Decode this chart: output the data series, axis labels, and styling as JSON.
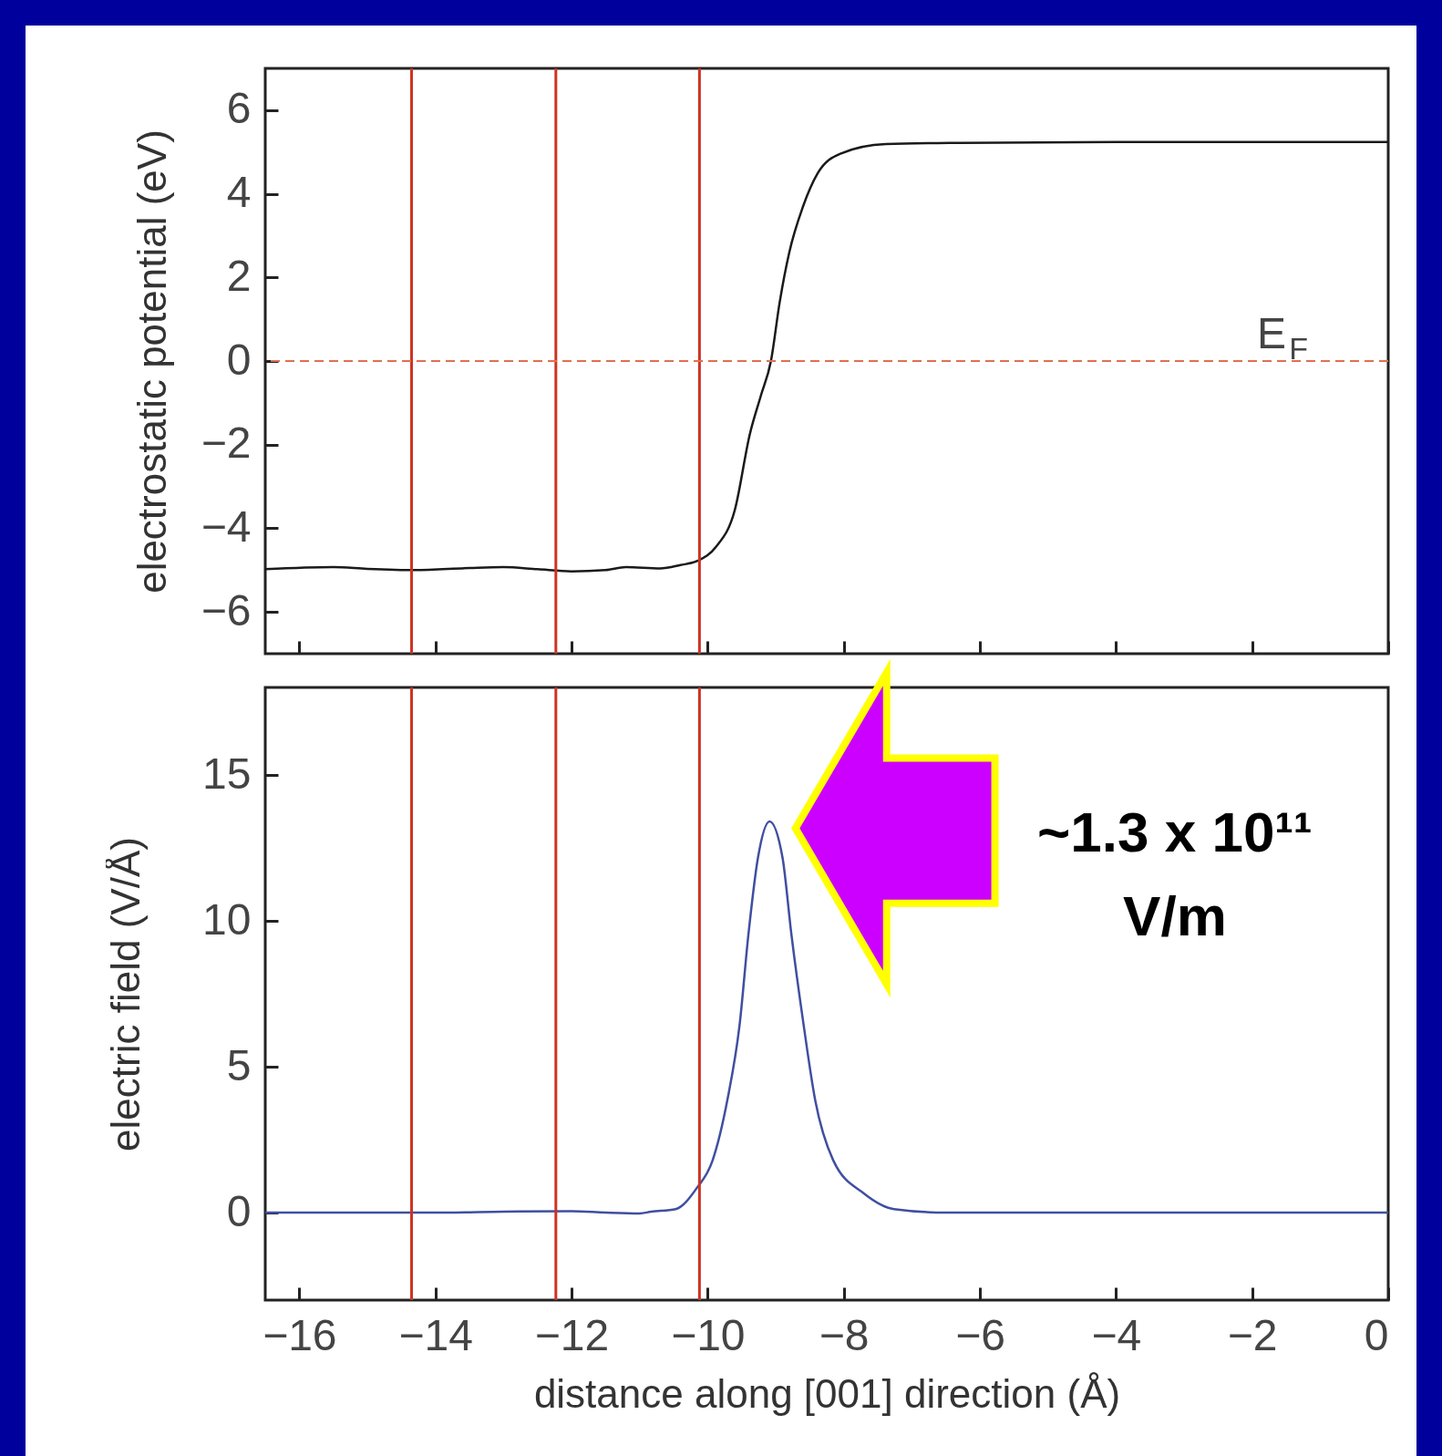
{
  "chart_data": [
    {
      "type": "line",
      "ylabel": "electrostatic potential (eV)",
      "xlim": [
        -16.5,
        0
      ],
      "xticks": [
        -16,
        -14,
        -12,
        -10,
        -8,
        -6,
        -4,
        -2,
        0
      ],
      "ylim": [
        -7,
        7
      ],
      "yticks": [
        -6,
        -4,
        -2,
        0,
        2,
        4,
        6
      ],
      "tick_labels": "y",
      "series": [
        {
          "color": "#1a1a1a",
          "x": [
            -16.5,
            -15.5,
            -15,
            -14.3,
            -13.5,
            -13,
            -12.5,
            -12,
            -11.5,
            -11.2,
            -10.7,
            -10.4,
            -10.15,
            -9.88,
            -9.6,
            -9.38,
            -9.22,
            -9.07,
            -8.94,
            -8.8,
            -8.6,
            -8.38,
            -8.05,
            -7.38,
            -6.28,
            -4,
            -2,
            0
          ],
          "values": [
            -4.98,
            -4.93,
            -4.97,
            -5.0,
            -4.95,
            -4.93,
            -4.98,
            -5.03,
            -5.0,
            -4.93,
            -4.96,
            -4.88,
            -4.78,
            -4.45,
            -3.56,
            -1.75,
            -0.84,
            0,
            1.42,
            2.6,
            3.69,
            4.5,
            4.96,
            5.19,
            5.22,
            5.24,
            5.24,
            5.24
          ]
        }
      ],
      "ref_lines": [
        {
          "axis": "x",
          "value": -14.35,
          "color": "#cc3322"
        },
        {
          "axis": "x",
          "value": -12.23,
          "color": "#cc3322"
        },
        {
          "axis": "x",
          "value": -10.12,
          "color": "#cc3322"
        },
        {
          "axis": "y",
          "value": 0,
          "label": "E$_{F}$",
          "color": "#e07050",
          "line_style": "dashed"
        }
      ]
    },
    {
      "type": "line",
      "xlabel": "distance along [001] direction (Å)",
      "ylabel": "electric field (V/Å)",
      "xlim": [
        -16.5,
        0
      ],
      "xticks": [
        -16,
        -14,
        -12,
        -10,
        -8,
        -6,
        -4,
        -2,
        0
      ],
      "ylim": [
        -3,
        18
      ],
      "yticks": [
        0,
        5,
        10,
        15
      ],
      "series": [
        {
          "color": "#3f4fa0",
          "x": [
            -16.5,
            -15,
            -14,
            -13,
            -12,
            -11.5,
            -11,
            -10.83,
            -10.47,
            -10.16,
            -9.93,
            -9.71,
            -9.53,
            -9.4,
            -9.26,
            -9.09,
            -8.9,
            -8.77,
            -8.59,
            -8.42,
            -8.15,
            -7.7,
            -7.26,
            -6.5,
            -4,
            -2,
            0
          ],
          "values": [
            0,
            0,
            0,
            0.03,
            0.05,
            0,
            -0.03,
            0.03,
            0.12,
            0.84,
            1.77,
            3.86,
            6.44,
            9.55,
            12.17,
            13.41,
            12.17,
            9.55,
            6.44,
            3.86,
            1.77,
            0.65,
            0.12,
            0,
            0,
            0,
            0
          ]
        }
      ],
      "ref_lines": [
        {
          "axis": "x",
          "value": -14.35,
          "color": "#cc3322"
        },
        {
          "axis": "x",
          "value": -12.23,
          "color": "#cc3322"
        },
        {
          "axis": "x",
          "value": -10.12,
          "color": "#cc3322"
        }
      ],
      "annotations": [
        "~1.3 x 10¹¹\nV/m"
      ]
    }
  ]
}
